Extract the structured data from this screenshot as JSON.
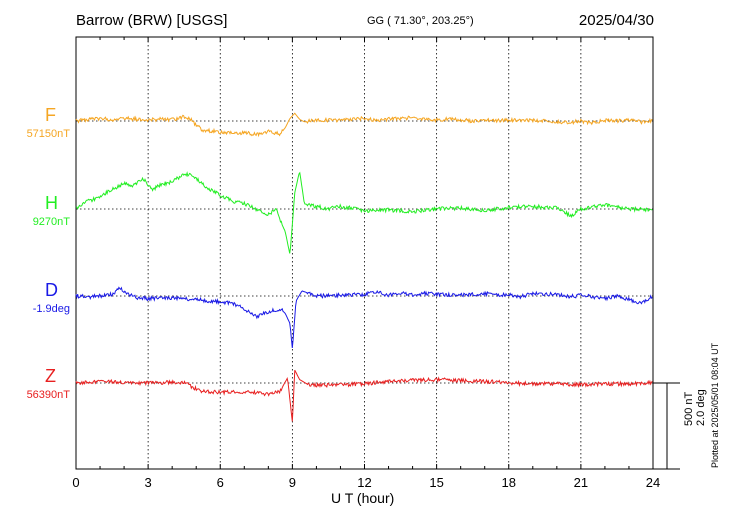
{
  "header": {
    "station": "Barrow (BRW)  [USGS]",
    "coords": "GG ( 71.30°, 203.25°)",
    "date": "2025/04/30"
  },
  "footer": {
    "plotted": "Plotted at 2025/05/01 08:04 UT"
  },
  "chart_data": {
    "type": "line",
    "xlabel": "U T (hour)",
    "xlim": [
      0,
      24
    ],
    "xticks": [
      "0",
      "3",
      "6",
      "9",
      "12",
      "15",
      "18",
      "21",
      "24"
    ],
    "grid": true,
    "scale_bar": {
      "line1": "500 nT",
      "line2": "2.0 deg"
    },
    "series": [
      {
        "name": "F",
        "base_label": "57150nT",
        "color": "#f5a623",
        "points": [
          [
            0,
            0
          ],
          [
            0.5,
            -10
          ],
          [
            1,
            -15
          ],
          [
            1.5,
            -8
          ],
          [
            2,
            -18
          ],
          [
            2.5,
            -10
          ],
          [
            3,
            -5
          ],
          [
            3.5,
            -10
          ],
          [
            4,
            -8
          ],
          [
            4.5,
            -25
          ],
          [
            4.8,
            -5
          ],
          [
            5.2,
            50
          ],
          [
            6,
            65
          ],
          [
            6.5,
            70
          ],
          [
            7,
            68
          ],
          [
            7.5,
            80
          ],
          [
            8,
            60
          ],
          [
            8.5,
            75
          ],
          [
            8.7,
            40
          ],
          [
            8.9,
            -15
          ],
          [
            9.1,
            -45
          ],
          [
            9.3,
            -10
          ],
          [
            9.5,
            5
          ],
          [
            10,
            -5
          ],
          [
            11,
            -5
          ],
          [
            12,
            -15
          ],
          [
            12.5,
            -5
          ],
          [
            13,
            -12
          ],
          [
            14,
            -18
          ],
          [
            15,
            -5
          ],
          [
            15.5,
            -12
          ],
          [
            16,
            -8
          ],
          [
            16.5,
            0
          ],
          [
            17,
            -3
          ],
          [
            18,
            -5
          ],
          [
            19,
            -5
          ],
          [
            20,
            5
          ],
          [
            20.5,
            10
          ],
          [
            21,
            0
          ],
          [
            21.5,
            10
          ],
          [
            22,
            -5
          ],
          [
            22.5,
            0
          ],
          [
            23,
            -3
          ],
          [
            23.5,
            5
          ],
          [
            24,
            0
          ]
        ]
      },
      {
        "name": "H",
        "base_label": "9270nT",
        "color": "#22ee22",
        "points": [
          [
            0,
            0
          ],
          [
            0.5,
            -45
          ],
          [
            1,
            -70
          ],
          [
            1.5,
            -115
          ],
          [
            2,
            -150
          ],
          [
            2.3,
            -130
          ],
          [
            2.8,
            -175
          ],
          [
            3.2,
            -110
          ],
          [
            3.5,
            -140
          ],
          [
            4,
            -160
          ],
          [
            4.5,
            -205
          ],
          [
            4.8,
            -195
          ],
          [
            5.1,
            -165
          ],
          [
            5.5,
            -120
          ],
          [
            6,
            -80
          ],
          [
            6.5,
            -45
          ],
          [
            7,
            -30
          ],
          [
            7.5,
            0
          ],
          [
            8,
            35
          ],
          [
            8.3,
            -5
          ],
          [
            8.5,
            70
          ],
          [
            8.7,
            130
          ],
          [
            8.9,
            265
          ],
          [
            9.1,
            -95
          ],
          [
            9.3,
            -220
          ],
          [
            9.5,
            -30
          ],
          [
            10,
            -15
          ],
          [
            10.5,
            0
          ],
          [
            11,
            -15
          ],
          [
            11.5,
            -5
          ],
          [
            12,
            10
          ],
          [
            13,
            5
          ],
          [
            14,
            15
          ],
          [
            15,
            0
          ],
          [
            16,
            -5
          ],
          [
            17,
            10
          ],
          [
            18,
            -10
          ],
          [
            19,
            -15
          ],
          [
            20,
            -5
          ],
          [
            20.3,
            15
          ],
          [
            20.6,
            45
          ],
          [
            21,
            0
          ],
          [
            21.5,
            -15
          ],
          [
            22,
            -25
          ],
          [
            22.5,
            -10
          ],
          [
            23,
            0
          ],
          [
            24,
            5
          ]
        ]
      },
      {
        "name": "D",
        "base_label": "-1.9deg",
        "color": "#1a1ae6",
        "points": [
          [
            0,
            0
          ],
          [
            0.5,
            5
          ],
          [
            1,
            0
          ],
          [
            1.5,
            -10
          ],
          [
            1.8,
            -45
          ],
          [
            2.2,
            -10
          ],
          [
            2.5,
            10
          ],
          [
            3,
            15
          ],
          [
            4,
            10
          ],
          [
            5,
            20
          ],
          [
            6,
            35
          ],
          [
            6.5,
            40
          ],
          [
            7,
            75
          ],
          [
            7.5,
            120
          ],
          [
            8,
            90
          ],
          [
            8.5,
            75
          ],
          [
            8.7,
            100
          ],
          [
            8.9,
            160
          ],
          [
            9,
            310
          ],
          [
            9.15,
            30
          ],
          [
            9.4,
            -30
          ],
          [
            10,
            0
          ],
          [
            11,
            -5
          ],
          [
            12,
            -10
          ],
          [
            12.5,
            -25
          ],
          [
            13,
            -5
          ],
          [
            13.5,
            -20
          ],
          [
            14,
            -5
          ],
          [
            14.5,
            -15
          ],
          [
            15,
            -10
          ],
          [
            16,
            -5
          ],
          [
            17,
            -15
          ],
          [
            17.5,
            -5
          ],
          [
            18,
            -10
          ],
          [
            18.5,
            5
          ],
          [
            19,
            -15
          ],
          [
            20,
            -10
          ],
          [
            20.5,
            5
          ],
          [
            21,
            -5
          ],
          [
            21.5,
            5
          ],
          [
            22,
            15
          ],
          [
            22.5,
            0
          ],
          [
            23,
            20
          ],
          [
            23.5,
            40
          ],
          [
            24,
            0
          ]
        ]
      },
      {
        "name": "Z",
        "base_label": "56390nT",
        "color": "#e82020",
        "points": [
          [
            0,
            0
          ],
          [
            0.5,
            -5
          ],
          [
            1,
            -10
          ],
          [
            2,
            -5
          ],
          [
            3,
            0
          ],
          [
            4,
            -5
          ],
          [
            4.5,
            -5
          ],
          [
            4.8,
            20
          ],
          [
            5.2,
            45
          ],
          [
            6,
            55
          ],
          [
            7,
            50
          ],
          [
            8,
            65
          ],
          [
            8.5,
            45
          ],
          [
            8.8,
            -30
          ],
          [
            9,
            230
          ],
          [
            9.1,
            -75
          ],
          [
            9.3,
            -20
          ],
          [
            9.6,
            5
          ],
          [
            10,
            15
          ],
          [
            11,
            10
          ],
          [
            12,
            5
          ],
          [
            13,
            -10
          ],
          [
            14,
            -15
          ],
          [
            15,
            -20
          ],
          [
            16,
            -15
          ],
          [
            17,
            -10
          ],
          [
            18,
            0
          ],
          [
            19,
            5
          ],
          [
            20,
            5
          ],
          [
            21,
            10
          ],
          [
            22,
            5
          ],
          [
            23,
            5
          ],
          [
            24,
            0
          ]
        ]
      }
    ]
  }
}
